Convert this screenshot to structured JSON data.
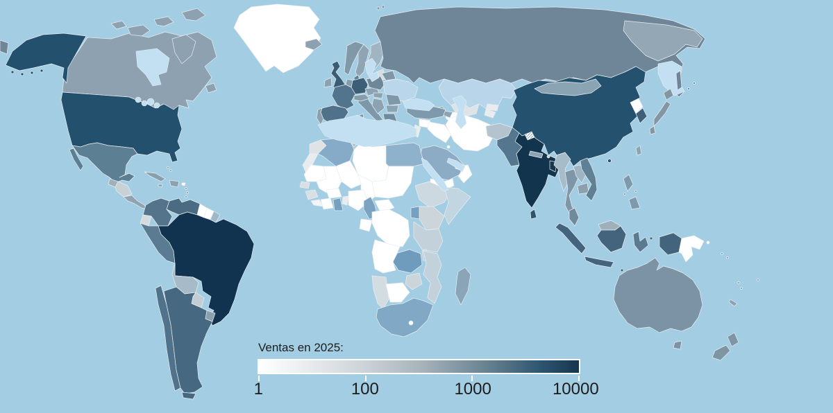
{
  "legend": {
    "title": "Ventas en 2025:",
    "ticks": [
      {
        "label": "1",
        "pos": 0
      },
      {
        "label": "100",
        "pos": 0.333
      },
      {
        "label": "1000",
        "pos": 0.667
      },
      {
        "label": "10000",
        "pos": 1
      }
    ],
    "scale_type": "log",
    "gradient": [
      "#ffffff",
      "#e9eced",
      "#ccd3d7",
      "#a9b5bc",
      "#64808f",
      "#2e5570",
      "#14374e"
    ],
    "gradient_positions": [
      0,
      0.15,
      0.33,
      0.5,
      0.72,
      0.88,
      1
    ]
  },
  "map": {
    "ocean_color": "#a3cde2",
    "inland_sea_color": "#c2e0f2",
    "border_color": "#e8eef2"
  },
  "chart_data": {
    "type": "choropleth",
    "title": "Ventas en 2025",
    "value_range": [
      1,
      10000
    ],
    "scale_type": "log",
    "countries": {
      "greenland": {
        "n": "Groenlandia",
        "c": "#ffffff",
        "v": 1
      },
      "canada": {
        "n": "Canadá",
        "c": "#8da1b0",
        "v": 200
      },
      "usa": {
        "n": "Estados Unidos",
        "c": "#23506c",
        "v": 5000
      },
      "mexico": {
        "n": "México",
        "c": "#5d7f94",
        "v": 700
      },
      "guatemala": {
        "n": "Guatemala",
        "c": "#9fb0ba",
        "v": 80
      },
      "honduras": {
        "n": "Honduras y Nicaragua",
        "c": "#c7d1d6",
        "v": 25
      },
      "costa-rica": {
        "n": "Costa Rica y Panamá",
        "c": "#8fa3b0",
        "v": 200
      },
      "cuba": {
        "n": "Cuba",
        "c": "#87a0af",
        "v": 200
      },
      "hispaniola": {
        "n": "Rep. Dominicana",
        "c": "#8ba2b1",
        "v": 200
      },
      "jamaica": {
        "n": "Jamaica",
        "c": "#8ca3b1",
        "v": 200
      },
      "puerto-rico": {
        "n": "Puerto Rico",
        "c": "#ffffff",
        "v": 1
      },
      "lesser-antilles": {
        "n": "Antillas Menores",
        "c": "#8ca3b1",
        "v": 200
      },
      "bahamas": {
        "n": "Bahamas",
        "c": "#8ca3b1",
        "v": 200
      },
      "colombia": {
        "n": "Colombia",
        "c": "#53748b",
        "v": 1000
      },
      "venezuela": {
        "n": "Venezuela",
        "c": "#4a6b82",
        "v": 1500
      },
      "guyana": {
        "n": "Guyana",
        "c": "#ffffff",
        "v": 1
      },
      "suriname": {
        "n": "Surinam",
        "c": "#ffffff",
        "v": 1
      },
      "french-guiana": {
        "n": "Guayana Francesa",
        "c": "#9fb8c8",
        "v": 80
      },
      "ecuador": {
        "n": "Ecuador",
        "c": "#d4dce0",
        "v": 10
      },
      "peru": {
        "n": "Perú",
        "c": "#5a7b91",
        "v": 700
      },
      "brazil": {
        "n": "Brasil",
        "c": "#113350",
        "v": 9000
      },
      "bolivia": {
        "n": "Bolivia",
        "c": "#a6bac7",
        "v": 80
      },
      "paraguay": {
        "n": "Paraguay",
        "c": "#c3ced4",
        "v": 25
      },
      "uruguay": {
        "n": "Uruguay",
        "c": "#8ba0ad",
        "v": 200
      },
      "chile": {
        "n": "Chile",
        "c": "#50728a",
        "v": 1000
      },
      "argentina": {
        "n": "Argentina",
        "c": "#466880",
        "v": 1500
      },
      "iceland": {
        "n": "Islandia",
        "c": "#8da1b0",
        "v": 200
      },
      "united-kingdom": {
        "n": "Reino Unido",
        "c": "#3a5c75",
        "v": 2500
      },
      "ireland": {
        "n": "Irlanda",
        "c": "#8da1b0",
        "v": 200
      },
      "norway": {
        "n": "Noruega",
        "c": "#8099a9",
        "v": 300
      },
      "sweden": {
        "n": "Suecia",
        "c": "#8fa5b3",
        "v": 200
      },
      "finland": {
        "n": "Finlandia",
        "c": "#9fb5c1",
        "v": 100
      },
      "denmark": {
        "n": "Dinamarca",
        "c": "#5d7f94",
        "v": 700
      },
      "baltics": {
        "n": "Países Bálticos",
        "c": "#d6dde0",
        "v": 10
      },
      "germany": {
        "n": "Alemania",
        "c": "#3d5e77",
        "v": 2500
      },
      "benelux": {
        "n": "Benelux",
        "c": "#859cab",
        "v": 250
      },
      "france": {
        "n": "Francia",
        "c": "#52748c",
        "v": 1000
      },
      "spain": {
        "n": "España",
        "c": "#4f7189",
        "v": 1000
      },
      "portugal": {
        "n": "Portugal",
        "c": "#8ba0ad",
        "v": 200
      },
      "italy": {
        "n": "Italia",
        "c": "#7d98a8",
        "v": 300
      },
      "alpine": {
        "n": "Suiza y Austria",
        "c": "#859cab",
        "v": 250
      },
      "czech-slovakia": {
        "n": "Chequia y Eslovaquia",
        "c": "#8ca3b1",
        "v": 200
      },
      "poland": {
        "n": "Polonia",
        "c": "#6e8798",
        "v": 450
      },
      "belarus": {
        "n": "Bielorrusia",
        "c": "#7e96a6",
        "v": 300
      },
      "ukraine": {
        "n": "Ucrania",
        "c": "#bad6eb",
        "v": 60
      },
      "romania": {
        "n": "Rumanía",
        "c": "#7e98a9",
        "v": 300
      },
      "hungary": {
        "n": "Hungría",
        "c": "#8ca3b1",
        "v": 200
      },
      "balkans": {
        "n": "Balcanes",
        "c": "#8ca3b1",
        "v": 200
      },
      "bulgaria": {
        "n": "Bulgaria",
        "c": "#8ca3b1",
        "v": 200
      },
      "greece": {
        "n": "Grecia",
        "c": "#6f8c9f",
        "v": 450
      },
      "russia": {
        "n": "Rusia",
        "c": "#6f8699",
        "v": 450
      },
      "siberia-ne": {
        "n": "Rusia (noreste)",
        "c": "#94a7b5",
        "v": 450
      },
      "kazakhstan": {
        "n": "Kazajistán",
        "c": "#b9d5ea",
        "v": 60
      },
      "uzbekistan": {
        "n": "Uzbekistán",
        "c": "#dde3e6",
        "v": 10
      },
      "turkmenistan": {
        "n": "Turkmenistán",
        "c": "#ffffff",
        "v": 1
      },
      "kyrgyzstan": {
        "n": "Kirguistán",
        "c": "#e8ecee",
        "v": 5
      },
      "tajikistan": {
        "n": "Tayikistán",
        "c": "#e8ecee",
        "v": 5
      },
      "georgia": {
        "n": "Georgia",
        "c": "#8ca3b1",
        "v": 200
      },
      "azerbaijan": {
        "n": "Azerbaiyán",
        "c": "#8ca3b1",
        "v": 200
      },
      "turkey": {
        "n": "Turquía",
        "c": "#7e99ab",
        "v": 300
      },
      "syria": {
        "n": "Siria",
        "c": "#ffffff",
        "v": 1
      },
      "levant": {
        "n": "Levante",
        "c": "#e8ecee",
        "v": 5
      },
      "iraq": {
        "n": "Irak",
        "c": "#ffffff",
        "v": 1
      },
      "iran": {
        "n": "Irán",
        "c": "#ffffff",
        "v": 1
      },
      "saudi-arabia": {
        "n": "Arabia Saudita",
        "c": "#8cabc4",
        "v": 250
      },
      "yemen": {
        "n": "Yemen",
        "c": "#ffffff",
        "v": 1
      },
      "oman": {
        "n": "Omán",
        "c": "#ffffff",
        "v": 1
      },
      "uae": {
        "n": "Emiratos Árabes Unidos",
        "c": "#ffffff",
        "v": 1
      },
      "kuwait": {
        "n": "Kuwait",
        "c": "#ffffff",
        "v": 1
      },
      "afghanistan": {
        "n": "Afganistán",
        "c": "#b3c4cf",
        "v": 50
      },
      "pakistan": {
        "n": "Pakistán",
        "c": "#54768e",
        "v": 1000
      },
      "india": {
        "n": "India",
        "c": "#12344d",
        "v": 10000
      },
      "kashmir": {
        "n": "Cachemira (disputado)",
        "c": "#ffffff",
        "v": 1,
        "p": "diagonal-hatch"
      },
      "nepal": {
        "n": "Nepal",
        "c": "#8da4b3",
        "v": 200
      },
      "bhutan": {
        "n": "Bután",
        "c": "#ccd6da",
        "v": 25
      },
      "bangladesh": {
        "n": "Bangladés",
        "c": "#16374f",
        "v": 7500
      },
      "sri-lanka": {
        "n": "Sri Lanka",
        "c": "#2a5674",
        "v": 4000
      },
      "myanmar": {
        "n": "Myanmar",
        "c": "#a7bcc9",
        "v": 50
      },
      "thailand": {
        "n": "Tailandia",
        "c": "#7e96a8",
        "v": 300
      },
      "laos": {
        "n": "Laos",
        "c": "#9fb4c2",
        "v": 80
      },
      "cambodia": {
        "n": "Camboya",
        "c": "#8ba1b0",
        "v": 200
      },
      "vietnam": {
        "n": "Vietnam",
        "c": "#5f8095",
        "v": 700
      },
      "malaysia": {
        "n": "Malasia",
        "c": "#6f8a9d",
        "v": 450
      },
      "malaysia-borneo": {
        "n": "Malasia (Borneo)",
        "c": "#9fb0ba",
        "v": 80
      },
      "indonesia": {
        "n": "Indonesia",
        "c": "#43647c",
        "v": 1800
      },
      "sulawesi": {
        "n": "Indonesia (Célebes)",
        "c": "#5a7a90",
        "v": 700
      },
      "philippines": {
        "n": "Filipinas",
        "c": "#7e99ab",
        "v": 300
      },
      "papua-new-guinea": {
        "n": "Papúa Nueva Guinea",
        "c": "#ffffff",
        "v": 1
      },
      "china": {
        "n": "China",
        "c": "#24516d",
        "v": 5000
      },
      "mongolia": {
        "n": "Mongolia",
        "c": "#8ba4b4",
        "v": 200
      },
      "north-korea": {
        "n": "Corea del Norte",
        "c": "#ffffff",
        "v": 1
      },
      "south-korea": {
        "n": "Corea del Sur",
        "c": "#3f6078",
        "v": 2500
      },
      "japan": {
        "n": "Japón",
        "c": "#8296a3",
        "v": 300
      },
      "taiwan": {
        "n": "Taiwán",
        "c": "#8ca3b1",
        "v": 200
      },
      "australia": {
        "n": "Australia",
        "c": "#7b93a4",
        "v": 300
      },
      "new-zealand": {
        "n": "Nueva Zelanda",
        "c": "#7e95a4",
        "v": 300
      },
      "pacific-islands": {
        "n": "Islas del Pacífico",
        "c": "#8ca3b1",
        "v": 200
      },
      "morocco": {
        "n": "Marruecos",
        "c": "#dfe3e5",
        "v": 10
      },
      "western-sahara": {
        "n": "Sáhara Occidental",
        "c": "#e8ecee",
        "v": 5
      },
      "algeria": {
        "n": "Argelia",
        "c": "#85abc9",
        "v": 250
      },
      "tunisia": {
        "n": "Túnez",
        "c": "#a9b6bd",
        "v": 80
      },
      "libya": {
        "n": "Libia",
        "c": "#ffffff",
        "v": 1
      },
      "egypt": {
        "n": "Egipto",
        "c": "#8fb2cc",
        "v": 250
      },
      "mauritania": {
        "n": "Mauritania",
        "c": "#ffffff",
        "v": 1
      },
      "mali": {
        "n": "Malí",
        "c": "#ffffff",
        "v": 1
      },
      "niger": {
        "n": "Níger",
        "c": "#ffffff",
        "v": 1
      },
      "chad": {
        "n": "Chad",
        "c": "#ffffff",
        "v": 1
      },
      "sudan": {
        "n": "Sudán",
        "c": "#ffffff",
        "v": 1
      },
      "senegal": {
        "n": "Senegal",
        "c": "#d9dfe2",
        "v": 10
      },
      "guinea": {
        "n": "Guinea",
        "c": "#d9dfe2",
        "v": 10
      },
      "sierra-leone": {
        "n": "Sierra Leona y Liberia",
        "c": "#f2f4f5",
        "v": 2
      },
      "ivory-coast": {
        "n": "Costa de Marfil",
        "c": "#ffffff",
        "v": 1
      },
      "burkina": {
        "n": "Burkina Faso",
        "c": "#ffffff",
        "v": 1
      },
      "ghana": {
        "n": "Ghana",
        "c": "#76a0bf",
        "v": 300
      },
      "togo-benin": {
        "n": "Togo y Benín",
        "c": "#e8ecee",
        "v": 5
      },
      "nigeria": {
        "n": "Nigeria",
        "c": "#ffffff",
        "v": 1
      },
      "cameroon": {
        "n": "Camerún",
        "c": "#7ba3c2",
        "v": 250
      },
      "central-african-republic": {
        "n": "Rep. Centroafricana",
        "c": "#ffffff",
        "v": 1
      },
      "gabon-congo": {
        "n": "Gabón y Congo",
        "c": "#ffffff",
        "v": 1
      },
      "drc": {
        "n": "Rep. Dem. del Congo",
        "c": "#ffffff",
        "v": 1
      },
      "ethiopia": {
        "n": "Etiopía",
        "c": "#ccd9e1",
        "v": 25
      },
      "somalia": {
        "n": "Somalia",
        "c": "#c2d6e2",
        "v": 25
      },
      "kenya": {
        "n": "Kenia",
        "c": "#ccd6da",
        "v": 25
      },
      "uganda": {
        "n": "Uganda",
        "c": "#76a0bf",
        "v": 300
      },
      "tanzania": {
        "n": "Tanzania",
        "c": "#c3d2da",
        "v": 25
      },
      "malawi": {
        "n": "Malaui",
        "c": "#c3d2da",
        "v": 25
      },
      "zambia": {
        "n": "Zambia",
        "c": "#6f9cbd",
        "v": 300
      },
      "angola": {
        "n": "Angola",
        "c": "#ffffff",
        "v": 1
      },
      "zimbabwe": {
        "n": "Zimbabue",
        "c": "#ccd6da",
        "v": 25
      },
      "mozambique": {
        "n": "Mozambique",
        "c": "#c3d2da",
        "v": 25
      },
      "namibia": {
        "n": "Namibia",
        "c": "#d3dce0",
        "v": 10
      },
      "botswana": {
        "n": "Botsuana",
        "c": "#ffffff",
        "v": 1
      },
      "south-africa": {
        "n": "Sudáfrica",
        "c": "#81a8c4",
        "v": 250
      },
      "lesotho": {
        "n": "Lesoto",
        "c": "#ffffff",
        "v": 1
      },
      "madagascar": {
        "n": "Madagascar",
        "c": "#8aa5b8",
        "v": 150
      }
    }
  }
}
